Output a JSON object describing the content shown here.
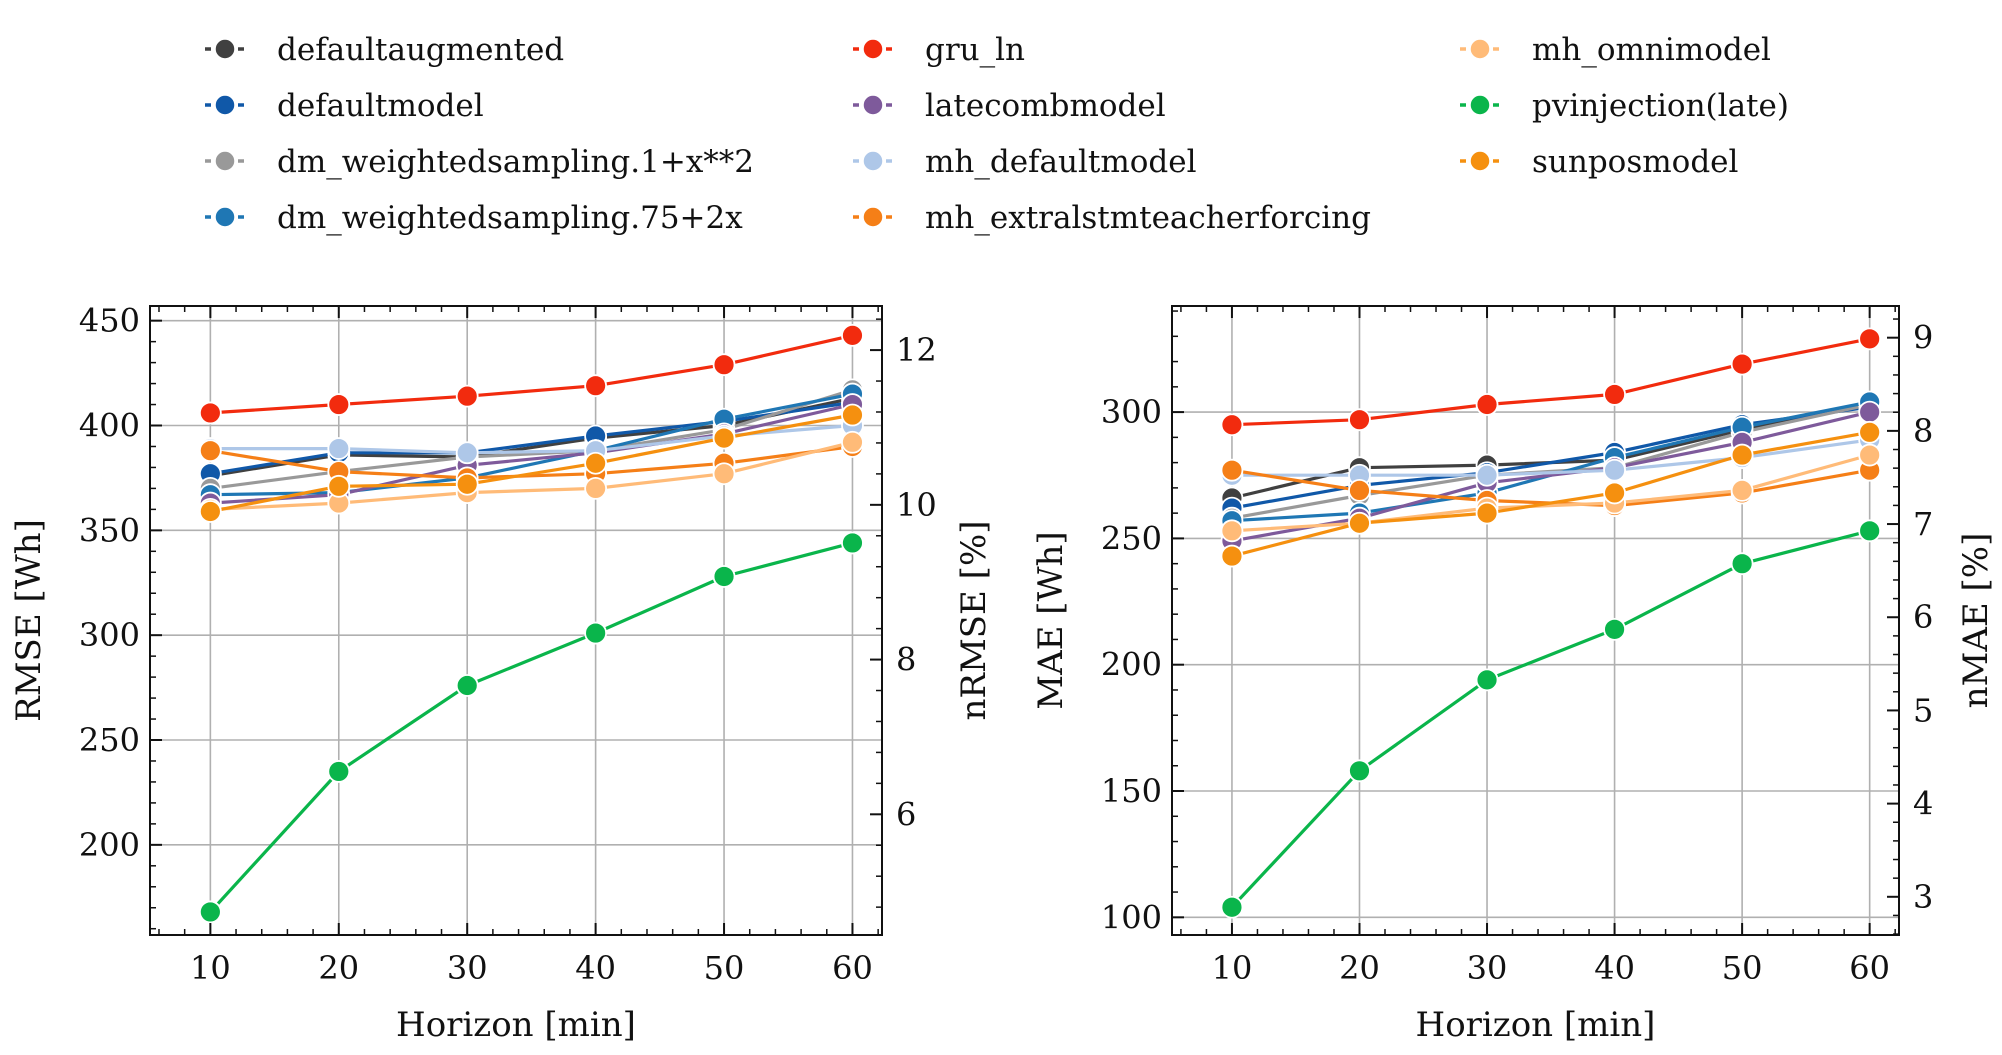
{
  "colors": {
    "defaultaugmented": "#404040",
    "defaultmodel": "#1058a8",
    "dm_weightedsampling.1+x**2": "#999999",
    "dm_weightedsampling.75+2x": "#1f77b4",
    "gru_ln": "#f22b0e",
    "latecombmodel": "#7e5a9b",
    "mh_defaultmodel": "#aec7e8",
    "mh_extralstmteacherforcing": "#f57f17",
    "mh_omnimodel": "#ffbb78",
    "pvinjection(late)": "#0ab54b",
    "sunposmodel": "#f5900f"
  },
  "legend": {
    "entries": [
      "defaultaugmented",
      "defaultmodel",
      "dm_weightedsampling.1+x**2",
      "dm_weightedsampling.75+2x",
      "gru_ln",
      "latecombmodel",
      "mh_defaultmodel",
      "mh_extralstmteacherforcing",
      "mh_omnimodel",
      "pvinjection(late)",
      "sunposmodel"
    ]
  },
  "chart_data": [
    {
      "type": "line",
      "xlabel": "Horizon [min]",
      "ylabel": "RMSE [Wh]",
      "ylabel_right": "nRMSE [%]",
      "x": [
        10,
        20,
        30,
        40,
        50,
        60
      ],
      "xticks": [
        "10",
        "20",
        "30",
        "40",
        "50",
        "60"
      ],
      "ylim": [
        157,
        457
      ],
      "yticks": [
        200,
        250,
        300,
        350,
        400,
        450
      ],
      "ylim_right": [
        4.44,
        12.57
      ],
      "yticks_right": [
        6,
        8,
        10,
        12
      ],
      "grid": true,
      "series": [
        {
          "name": "defaultaugmented",
          "values": [
            376,
            386,
            385,
            394,
            400,
            413
          ]
        },
        {
          "name": "defaultmodel",
          "values": [
            377,
            387,
            387,
            395,
            402,
            411
          ]
        },
        {
          "name": "dm_weightedsampling.1+x**2",
          "values": [
            370,
            378,
            385,
            388,
            398,
            417
          ]
        },
        {
          "name": "dm_weightedsampling.75+2x",
          "values": [
            367,
            368,
            375,
            388,
            403,
            415
          ]
        },
        {
          "name": "gru_ln",
          "values": [
            406,
            410,
            414,
            419,
            429,
            443
          ]
        },
        {
          "name": "latecombmodel",
          "values": [
            363,
            367,
            381,
            387,
            396,
            410
          ]
        },
        {
          "name": "mh_defaultmodel",
          "values": [
            389,
            389,
            387,
            388,
            395,
            400
          ]
        },
        {
          "name": "mh_extralstmteacherforcing",
          "values": [
            388,
            378,
            375,
            377,
            382,
            390
          ]
        },
        {
          "name": "mh_omnimodel",
          "values": [
            360,
            363,
            368,
            370,
            377,
            392
          ]
        },
        {
          "name": "pvinjection(late)",
          "values": [
            168,
            235,
            276,
            301,
            328,
            344
          ]
        },
        {
          "name": "sunposmodel",
          "values": [
            359,
            371,
            372,
            382,
            394,
            405
          ]
        }
      ]
    },
    {
      "type": "line",
      "xlabel": "Horizon [min]",
      "ylabel": "MAE [Wh]",
      "ylabel_right": "nMAE [%]",
      "x": [
        10,
        20,
        30,
        40,
        50,
        60
      ],
      "xticks": [
        "10",
        "20",
        "30",
        "40",
        "50",
        "60"
      ],
      "ylim": [
        93,
        342
      ],
      "yticks": [
        100,
        150,
        200,
        250,
        300
      ],
      "ylim_right": [
        2.59,
        9.34
      ],
      "yticks_right": [
        3,
        4,
        5,
        6,
        7,
        8,
        9
      ],
      "grid": true,
      "series": [
        {
          "name": "defaultaugmented",
          "values": [
            266,
            278,
            279,
            281,
            293,
            303
          ]
        },
        {
          "name": "defaultmodel",
          "values": [
            262,
            271,
            276,
            284,
            295,
            302
          ]
        },
        {
          "name": "dm_weightedsampling.1+x**2",
          "values": [
            258,
            267,
            275,
            278,
            292,
            303
          ]
        },
        {
          "name": "dm_weightedsampling.75+2x",
          "values": [
            257,
            260,
            268,
            282,
            294,
            304
          ]
        },
        {
          "name": "gru_ln",
          "values": [
            295,
            297,
            303,
            307,
            319,
            329
          ]
        },
        {
          "name": "latecombmodel",
          "values": [
            249,
            258,
            272,
            278,
            288,
            300
          ]
        },
        {
          "name": "mh_defaultmodel",
          "values": [
            275,
            275,
            275,
            277,
            282,
            289
          ]
        },
        {
          "name": "mh_extralstmteacherforcing",
          "values": [
            277,
            269,
            265,
            263,
            268,
            277
          ]
        },
        {
          "name": "mh_omnimodel",
          "values": [
            253,
            256,
            262,
            264,
            269,
            283
          ]
        },
        {
          "name": "pvinjection(late)",
          "values": [
            104,
            158,
            194,
            214,
            240,
            253
          ]
        },
        {
          "name": "sunposmodel",
          "values": [
            243,
            256,
            260,
            268,
            283,
            292
          ]
        }
      ]
    }
  ]
}
